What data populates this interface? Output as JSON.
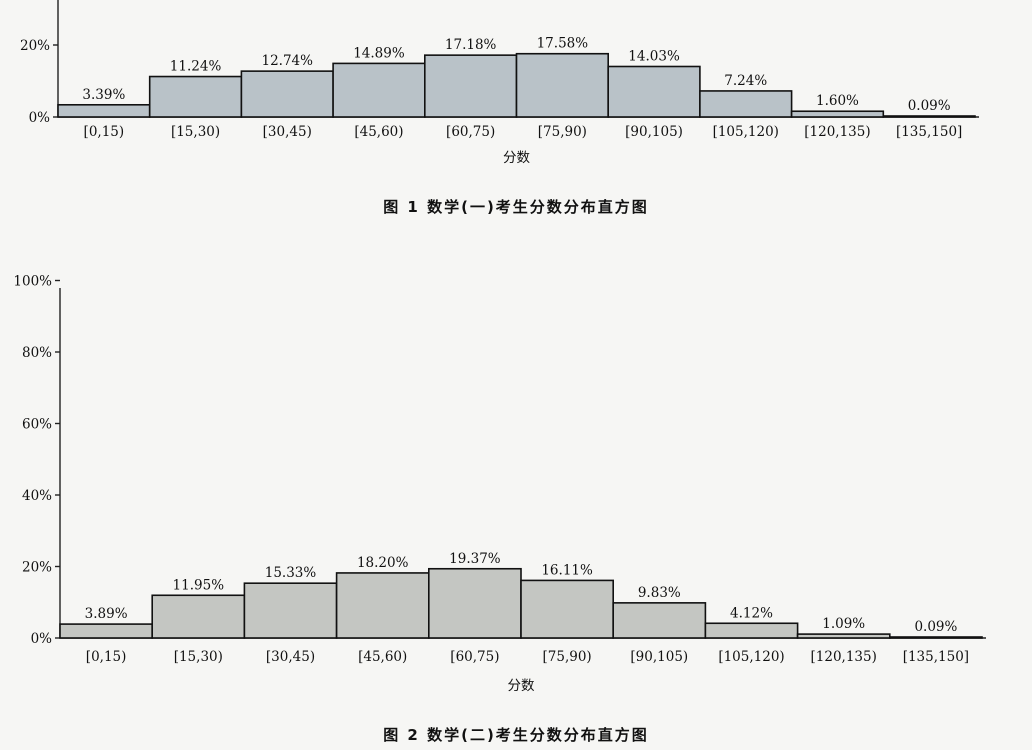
{
  "chart_data": [
    {
      "type": "bar",
      "caption": "图 1   数学(一)考生分数分布直方图",
      "xlabel": "分数",
      "ylabel": "",
      "categories": [
        "[0,15)",
        "[15,30)",
        "[30,45)",
        "[45,60)",
        "[60,75)",
        "[75,90)",
        "[90,105)",
        "[105,120)",
        "[120,135)",
        "[135,150]"
      ],
      "values": [
        3.39,
        11.24,
        12.74,
        14.89,
        17.18,
        17.58,
        14.03,
        7.24,
        1.6,
        0.09
      ],
      "data_labels": [
        "3.39%",
        "11.24%",
        "12.74%",
        "14.89%",
        "17.18%",
        "17.58%",
        "14.03%",
        "7.24%",
        "1.60%",
        "0.09%"
      ],
      "yticks": [
        "0%",
        "20%"
      ],
      "ylim": [
        0,
        100
      ],
      "grid": false,
      "bar_color": "#b9c2c8"
    },
    {
      "type": "bar",
      "caption": "图 2   数学(二)考生分数分布直方图",
      "xlabel": "分数",
      "ylabel": "",
      "categories": [
        "[0,15)",
        "[15,30)",
        "[30,45)",
        "[45,60)",
        "[60,75)",
        "[75,90)",
        "[90,105)",
        "[105,120)",
        "[120,135)",
        "[135,150]"
      ],
      "values": [
        3.89,
        11.95,
        15.33,
        18.2,
        19.37,
        16.11,
        9.83,
        4.12,
        1.09,
        0.09
      ],
      "data_labels": [
        "3.89%",
        "11.95%",
        "15.33%",
        "18.20%",
        "19.37%",
        "16.11%",
        "9.83%",
        "4.12%",
        "1.09%",
        "0.09%"
      ],
      "yticks": [
        "0%",
        "20%",
        "40%",
        "60%",
        "80%",
        "100%"
      ],
      "ylim": [
        0,
        100
      ],
      "grid": false,
      "bar_color": "#c4c6c2"
    }
  ]
}
